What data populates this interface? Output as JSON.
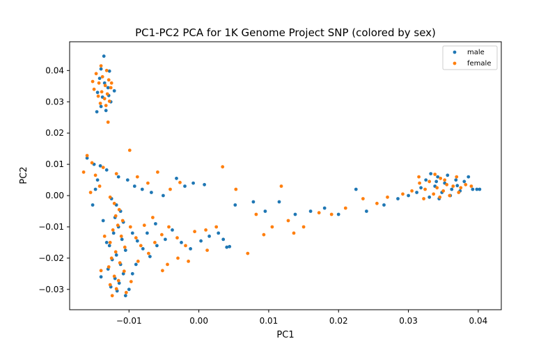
{
  "chart_data": {
    "type": "scatter",
    "title": "PC1-PC2 PCA for 1K Genome Project SNP (colored by sex)",
    "xlabel": "PC1",
    "ylabel": "PC2",
    "xlim": [
      -0.0185,
      0.0433
    ],
    "ylim": [
      -0.0365,
      0.0492
    ],
    "xticks": [
      -0.01,
      0.0,
      0.01,
      0.02,
      0.03,
      0.04
    ],
    "xtick_labels": [
      "−0.01",
      "0.00",
      "0.01",
      "0.02",
      "0.03",
      "0.04"
    ],
    "yticks": [
      -0.03,
      -0.02,
      -0.01,
      0.0,
      0.01,
      0.02,
      0.03,
      0.04
    ],
    "ytick_labels": [
      "−0.03",
      "−0.02",
      "−0.01",
      "0.00",
      "0.01",
      "0.02",
      "0.03",
      "0.04"
    ],
    "grid": false,
    "legend_position": "top-right",
    "series": [
      {
        "name": "male",
        "color": "#1f77b4",
        "points": [
          [
            -0.0136,
            0.0446
          ],
          [
            -0.014,
            0.0405
          ],
          [
            -0.0128,
            0.0398
          ],
          [
            -0.0142,
            0.0375
          ],
          [
            -0.0135,
            0.036
          ],
          [
            -0.013,
            0.0345
          ],
          [
            -0.0145,
            0.033
          ],
          [
            -0.0138,
            0.0315
          ],
          [
            -0.0126,
            0.03
          ],
          [
            -0.014,
            0.0285
          ],
          [
            -0.0133,
            0.0272
          ],
          [
            -0.0146,
            0.0268
          ],
          [
            -0.0129,
            0.032
          ],
          [
            -0.0121,
            0.0335
          ],
          [
            -0.015,
            0.01
          ],
          [
            -0.0141,
            0.0095
          ],
          [
            -0.0132,
            0.0082
          ],
          [
            -0.0115,
            0.006
          ],
          [
            -0.0102,
            0.005
          ],
          [
            -0.0092,
            0.003
          ],
          [
            -0.0081,
            0.002
          ],
          [
            -0.0068,
            0.001
          ],
          [
            -0.0051,
            0.0
          ],
          [
            -0.0032,
            0.0055
          ],
          [
            -0.002,
            0.003
          ],
          [
            -0.0008,
            0.004
          ],
          [
            0.0008,
            0.0035
          ],
          [
            -0.0145,
            0.005
          ],
          [
            -0.0148,
            0.002
          ],
          [
            -0.0152,
            -0.003
          ],
          [
            -0.0125,
            -0.001
          ],
          [
            -0.0118,
            -0.003
          ],
          [
            -0.0112,
            -0.005
          ],
          [
            -0.012,
            -0.007
          ],
          [
            -0.0108,
            -0.0085
          ],
          [
            -0.0115,
            -0.01
          ],
          [
            -0.0122,
            -0.012
          ],
          [
            -0.011,
            -0.014
          ],
          [
            -0.0128,
            -0.016
          ],
          [
            -0.0105,
            -0.0175
          ],
          [
            -0.0118,
            -0.019
          ],
          [
            -0.0124,
            -0.0205
          ],
          [
            -0.0112,
            -0.022
          ],
          [
            -0.013,
            -0.0235
          ],
          [
            -0.0108,
            -0.025
          ],
          [
            -0.012,
            -0.0265
          ],
          [
            -0.0114,
            -0.028
          ],
          [
            -0.0126,
            -0.0292
          ],
          [
            -0.0117,
            -0.0305
          ],
          [
            -0.0095,
            -0.012
          ],
          [
            -0.0088,
            -0.0145
          ],
          [
            -0.008,
            -0.017
          ],
          [
            -0.007,
            -0.0195
          ],
          [
            -0.006,
            -0.016
          ],
          [
            -0.0048,
            -0.014
          ],
          [
            -0.0038,
            -0.011
          ],
          [
            -0.0025,
            -0.015
          ],
          [
            -0.0012,
            -0.017
          ],
          [
            0.0003,
            -0.0145
          ],
          [
            0.0015,
            -0.013
          ],
          [
            0.0028,
            -0.012
          ],
          [
            0.0035,
            -0.014
          ],
          [
            0.004,
            -0.0165
          ],
          [
            0.0044,
            -0.0163
          ],
          [
            0.0052,
            -0.003
          ],
          [
            0.0078,
            -0.002
          ],
          [
            0.0095,
            -0.005
          ],
          [
            0.0115,
            -0.002
          ],
          [
            0.0138,
            -0.006
          ],
          [
            0.016,
            -0.005
          ],
          [
            0.018,
            -0.004
          ],
          [
            0.02,
            -0.006
          ],
          [
            0.0225,
            0.002
          ],
          [
            0.024,
            -0.005
          ],
          [
            0.0265,
            -0.003
          ],
          [
            0.0285,
            -0.001
          ],
          [
            0.03,
            0.0
          ],
          [
            0.0312,
            0.001
          ],
          [
            0.0325,
            0.005
          ],
          [
            0.0332,
            0.007
          ],
          [
            0.0338,
            0.003
          ],
          [
            0.0342,
            0.006
          ],
          [
            0.0348,
            0.001
          ],
          [
            0.0352,
            0.004
          ],
          [
            0.0356,
            0.0065
          ],
          [
            0.0362,
            0.002
          ],
          [
            0.0368,
            0.005
          ],
          [
            0.0374,
            0.0015
          ],
          [
            0.038,
            0.0045
          ],
          [
            0.0386,
            0.006
          ],
          [
            0.0392,
            0.002
          ],
          [
            0.0398,
            0.002
          ],
          [
            0.0402,
            0.002
          ],
          [
            0.033,
            -0.0005
          ],
          [
            0.0318,
            0.0025
          ],
          [
            0.0344,
            -0.001
          ],
          [
            0.036,
            0.0
          ],
          [
            0.037,
            0.0032
          ],
          [
            0.034,
            0.0045
          ],
          [
            -0.016,
            0.012
          ],
          [
            -0.0095,
            -0.025
          ],
          [
            -0.009,
            -0.022
          ],
          [
            -0.01,
            -0.03
          ],
          [
            -0.0105,
            -0.032
          ],
          [
            -0.014,
            -0.026
          ],
          [
            -0.0132,
            -0.015
          ],
          [
            -0.0137,
            -0.008
          ],
          [
            -0.0074,
            -0.012
          ],
          [
            -0.0062,
            -0.009
          ]
        ]
      },
      {
        "name": "female",
        "color": "#ff7f0e",
        "points": [
          [
            -0.014,
            0.0415
          ],
          [
            -0.0132,
            0.04
          ],
          [
            -0.0147,
            0.039
          ],
          [
            -0.0138,
            0.038
          ],
          [
            -0.0129,
            0.037
          ],
          [
            -0.0143,
            0.036
          ],
          [
            -0.0134,
            0.0352
          ],
          [
            -0.0126,
            0.0345
          ],
          [
            -0.015,
            0.034
          ],
          [
            -0.0139,
            0.0332
          ],
          [
            -0.0131,
            0.0325
          ],
          [
            -0.0144,
            0.0318
          ],
          [
            -0.0135,
            0.031
          ],
          [
            -0.0128,
            0.0302
          ],
          [
            -0.0141,
            0.0295
          ],
          [
            -0.0133,
            0.0288
          ],
          [
            -0.0125,
            0.036
          ],
          [
            -0.0152,
            0.0365
          ],
          [
            -0.013,
            0.0235
          ],
          [
            -0.016,
            0.0128
          ],
          [
            -0.0153,
            0.0105
          ],
          [
            -0.0137,
            0.009
          ],
          [
            -0.0118,
            0.007
          ],
          [
            -0.0099,
            0.0145
          ],
          [
            -0.0088,
            0.006
          ],
          [
            -0.0073,
            0.004
          ],
          [
            -0.0059,
            0.0075
          ],
          [
            -0.0041,
            0.002
          ],
          [
            -0.0027,
            0.0042
          ],
          [
            0.0034,
            0.0092
          ],
          [
            -0.0148,
            0.0065
          ],
          [
            -0.0142,
            0.003
          ],
          [
            -0.0155,
            0.001
          ],
          [
            -0.0127,
            -0.0005
          ],
          [
            -0.0121,
            -0.0025
          ],
          [
            -0.0114,
            -0.0045
          ],
          [
            -0.0119,
            -0.0065
          ],
          [
            -0.0109,
            -0.008
          ],
          [
            -0.0116,
            -0.0095
          ],
          [
            -0.0123,
            -0.011
          ],
          [
            -0.0111,
            -0.013
          ],
          [
            -0.0127,
            -0.015
          ],
          [
            -0.0106,
            -0.0165
          ],
          [
            -0.0119,
            -0.018
          ],
          [
            -0.0125,
            -0.02
          ],
          [
            -0.0113,
            -0.0215
          ],
          [
            -0.0129,
            -0.0228
          ],
          [
            -0.0107,
            -0.0242
          ],
          [
            -0.0121,
            -0.0258
          ],
          [
            -0.0115,
            -0.0272
          ],
          [
            -0.0127,
            -0.0285
          ],
          [
            -0.0118,
            -0.0298
          ],
          [
            -0.0124,
            -0.032
          ],
          [
            -0.0098,
            -0.01
          ],
          [
            -0.009,
            -0.0135
          ],
          [
            -0.0083,
            -0.016
          ],
          [
            -0.0072,
            -0.0185
          ],
          [
            -0.0063,
            -0.015
          ],
          [
            -0.0053,
            -0.0125
          ],
          [
            -0.0043,
            -0.01
          ],
          [
            -0.0031,
            -0.0135
          ],
          [
            -0.0019,
            -0.016
          ],
          [
            -0.0006,
            -0.0115
          ],
          [
            0.001,
            -0.011
          ],
          [
            0.0025,
            -0.01
          ],
          [
            -0.0045,
            -0.022
          ],
          [
            -0.003,
            -0.02
          ],
          [
            -0.0052,
            -0.024
          ],
          [
            0.0053,
            0.002
          ],
          [
            0.007,
            -0.0185
          ],
          [
            0.0082,
            -0.006
          ],
          [
            0.0093,
            -0.0125
          ],
          [
            0.0105,
            -0.01
          ],
          [
            0.0118,
            0.003
          ],
          [
            0.0128,
            -0.008
          ],
          [
            0.0136,
            -0.012
          ],
          [
            0.015,
            -0.01
          ],
          [
            0.0172,
            -0.0055
          ],
          [
            0.019,
            -0.006
          ],
          [
            0.021,
            -0.004
          ],
          [
            0.0235,
            -0.001
          ],
          [
            0.0255,
            -0.0025
          ],
          [
            0.027,
            -0.0005
          ],
          [
            0.0292,
            0.0005
          ],
          [
            0.0305,
            0.0015
          ],
          [
            0.0316,
            0.004
          ],
          [
            0.0324,
            0.002
          ],
          [
            0.033,
            0.0045
          ],
          [
            0.0336,
            0.0005
          ],
          [
            0.0341,
            0.0025
          ],
          [
            0.0346,
            0.0055
          ],
          [
            0.035,
            0.0015
          ],
          [
            0.0355,
            0.0035
          ],
          [
            0.0359,
            0.0
          ],
          [
            0.0364,
            0.003
          ],
          [
            0.0369,
            0.006
          ],
          [
            0.0375,
            0.0025
          ],
          [
            0.0382,
            0.0035
          ],
          [
            0.039,
            0.003
          ],
          [
            0.0315,
            0.006
          ],
          [
            0.0322,
            -0.001
          ],
          [
            0.0345,
            -0.0005
          ],
          [
            0.0338,
            0.0068
          ],
          [
            0.0372,
            0.001
          ],
          [
            0.0352,
            0.005
          ],
          [
            -0.0165,
            0.0075
          ],
          [
            -0.0097,
            -0.0275
          ],
          [
            -0.0087,
            -0.021
          ],
          [
            -0.0104,
            -0.031
          ],
          [
            -0.014,
            -0.024
          ],
          [
            -0.0135,
            -0.013
          ],
          [
            -0.0078,
            -0.0095
          ],
          [
            -0.0066,
            -0.007
          ],
          [
            -0.0015,
            -0.021
          ],
          [
            0.0012,
            -0.0175
          ]
        ]
      }
    ]
  }
}
